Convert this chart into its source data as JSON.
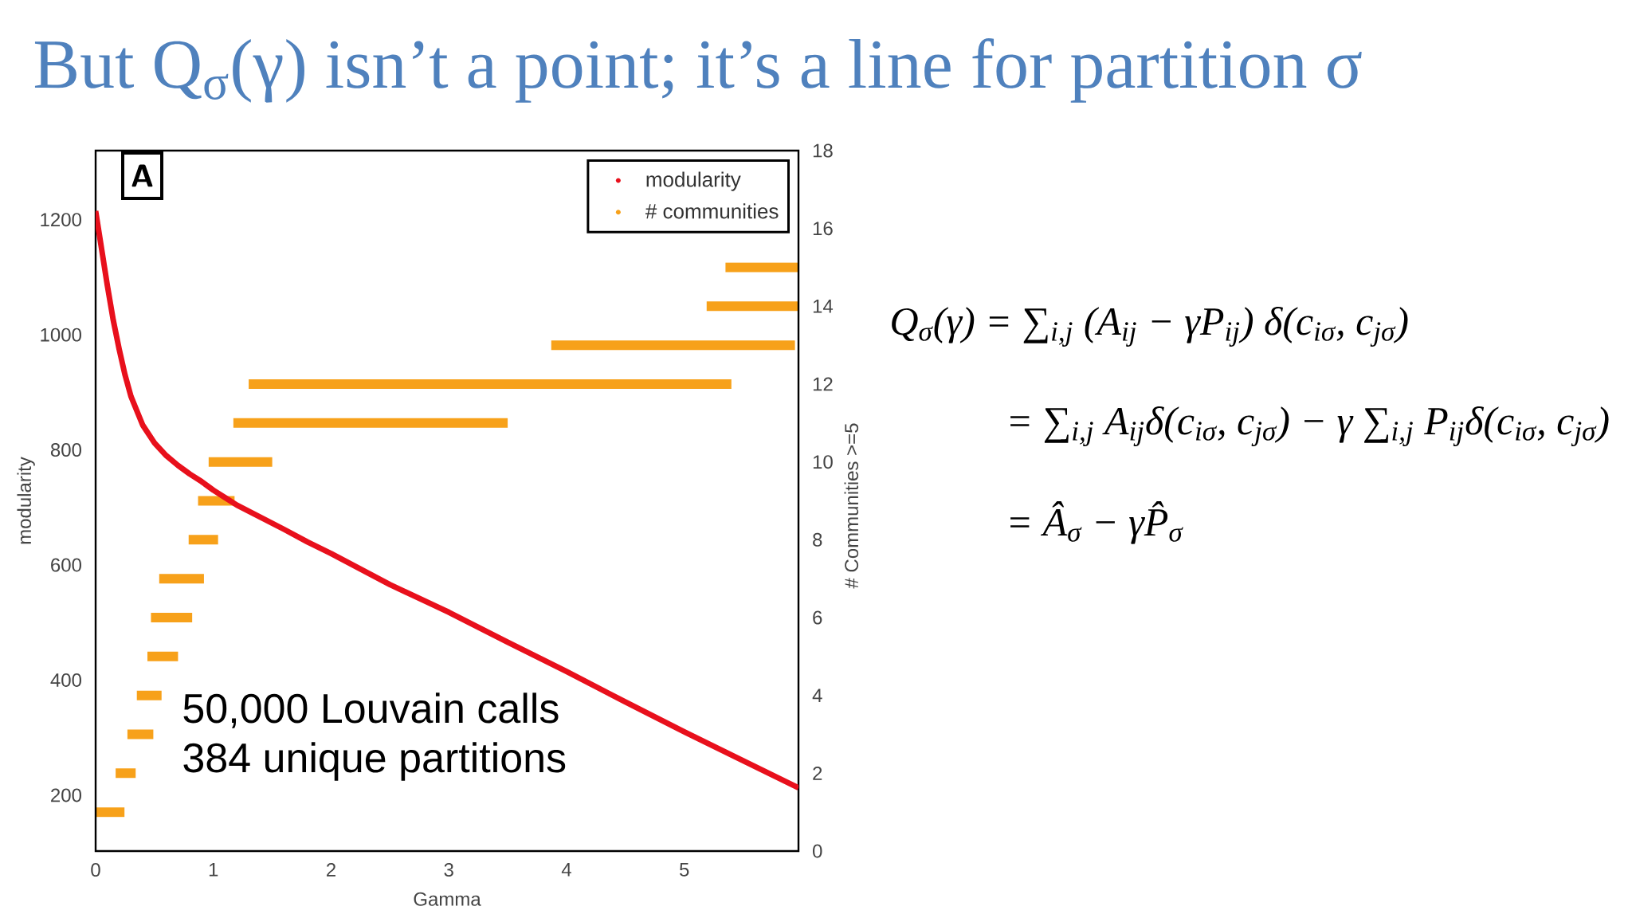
{
  "chart_data": {
    "type": "line",
    "title": "But Q$_{σ}$(γ) isn’t a point; it’s a line for partition σ",
    "xlabel": "Gamma",
    "ylabel": "modularity",
    "y2label": "# Communities >=5",
    "xlim": [
      0,
      5.97
    ],
    "xticks": [
      0,
      1,
      2,
      3,
      4,
      5
    ],
    "ylim": [
      103,
      1320
    ],
    "yticks": [
      200,
      400,
      600,
      800,
      1000,
      1200
    ],
    "y2lim": [
      0,
      18
    ],
    "y2ticks": [
      0,
      2,
      4,
      6,
      8,
      10,
      12,
      14,
      16,
      18
    ],
    "legend": "top right",
    "series": [
      {
        "name": "modularity",
        "color": "#e8101c",
        "x": [
          0,
          0.05,
          0.1,
          0.15,
          0.2,
          0.25,
          0.3,
          0.4,
          0.5,
          0.6,
          0.7,
          0.8,
          0.9,
          1.0,
          1.1,
          1.2,
          1.4,
          1.6,
          1.8,
          2.0,
          2.5,
          3.0,
          3.5,
          4.0,
          4.5,
          5.0,
          5.5,
          5.97
        ],
        "values": [
          1215,
          1150,
          1085,
          1025,
          975,
          930,
          893,
          843,
          812,
          790,
          773,
          758,
          745,
          730,
          717,
          704,
          683,
          662,
          640,
          620,
          566,
          518,
          466,
          415,
          362,
          310,
          260,
          213
        ]
      },
      {
        "name": "# communities",
        "color": "#f7a11a",
        "axis": "y2",
        "x": [
          0,
          0.245,
          null,
          0.17,
          0.34,
          null,
          0.27,
          0.49,
          null,
          0.35,
          0.56,
          null,
          0.44,
          0.7,
          null,
          0.47,
          0.82,
          null,
          0.54,
          0.92,
          null,
          0.79,
          1.04,
          null,
          0.87,
          1.18,
          null,
          0.96,
          1.5,
          null,
          1.17,
          3.5,
          null,
          1.3,
          5.4,
          null,
          3.87,
          5.94,
          null,
          5.19,
          5.97,
          null,
          5.35,
          5.97
        ],
        "values": [
          1,
          1,
          null,
          2,
          2,
          null,
          3,
          3,
          null,
          4,
          4,
          null,
          5,
          5,
          null,
          6,
          6,
          null,
          7,
          7,
          null,
          8,
          8,
          null,
          9,
          9,
          null,
          10,
          10,
          null,
          11,
          11,
          null,
          12,
          12,
          null,
          13,
          13,
          null,
          14,
          14,
          null,
          15,
          15
        ]
      }
    ],
    "annotations": [
      "A",
      "50,000 Louvain calls",
      "384 unique partitions",
      "Q$_{σ}$(γ) = ∑$_{i,j}$ (A$_{ij}$ − γP$_{ij}$) δ(c$_{iσ}$, c$_{jσ}$)",
      "= ∑$_{i,j}$ A$_{ij}$δ(c$_{iσ}$, c$_{jσ}$) − γ ∑$_{i,j}$ P$_{ij}$δ(c$_{iσ}$, c$_{jσ}$)",
      "= Â$_{σ}$ − γP̂$_{σ}$"
    ]
  }
}
